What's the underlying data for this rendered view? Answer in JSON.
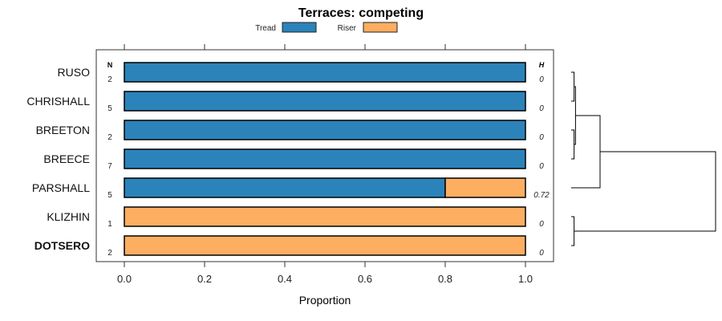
{
  "chart_data": {
    "type": "bar",
    "stacked": true,
    "orientation": "horizontal",
    "title": "Terraces: competing",
    "xlabel": "Proportion",
    "ylabel": "",
    "xlim": [
      0,
      1
    ],
    "xticks": [
      "0.0",
      "0.2",
      "0.4",
      "0.6",
      "0.8",
      "1.0"
    ],
    "xtick_values": [
      0,
      0.2,
      0.4,
      0.6,
      0.8,
      1.0
    ],
    "legend": {
      "placement": "top",
      "entries": [
        "Tread",
        "Riser"
      ]
    },
    "categories": [
      "RUSO",
      "CHRISHALL",
      "BREETON",
      "BREECE",
      "PARSHALL",
      "KLIZHIN",
      "DOTSERO"
    ],
    "bold_categories": [
      "DOTSERO"
    ],
    "series": [
      {
        "name": "Tread",
        "color": "#2b83ba",
        "values": [
          1,
          1,
          1,
          1,
          0.8,
          0,
          0
        ]
      },
      {
        "name": "Riser",
        "color": "#fdae61",
        "values": [
          0,
          0,
          0,
          0,
          0.2,
          1,
          1
        ]
      }
    ],
    "n_header": "N",
    "n_values": [
      "2",
      "5",
      "2",
      "7",
      "5",
      "1",
      "2"
    ],
    "h_header": "H",
    "h_values": [
      "0",
      "0",
      "0",
      "0",
      "0.72",
      "0",
      "0"
    ],
    "dendrogram": {
      "leaves": [
        "RUSO",
        "CHRISHALL",
        "BREETON",
        "BREECE",
        "PARSHALL",
        "KLIZHIN",
        "DOTSERO"
      ],
      "merges": [
        {
          "a": "RUSO",
          "b": "CHRISHALL",
          "height": 0.02
        },
        {
          "a": "BREETON",
          "b": "BREECE",
          "height": 0.02
        },
        {
          "a": "RUSO+CHRISHALL",
          "b": "BREETON+BREECE",
          "height": 0.03
        },
        {
          "a": "RUSO..BREECE",
          "b": "PARSHALL",
          "height": 0.2
        },
        {
          "a": "KLIZHIN",
          "b": "DOTSERO",
          "height": 0.02
        },
        {
          "a": "RUSO..PARSHALL",
          "b": "KLIZHIN+DOTSERO",
          "height": 1.0
        }
      ]
    }
  }
}
